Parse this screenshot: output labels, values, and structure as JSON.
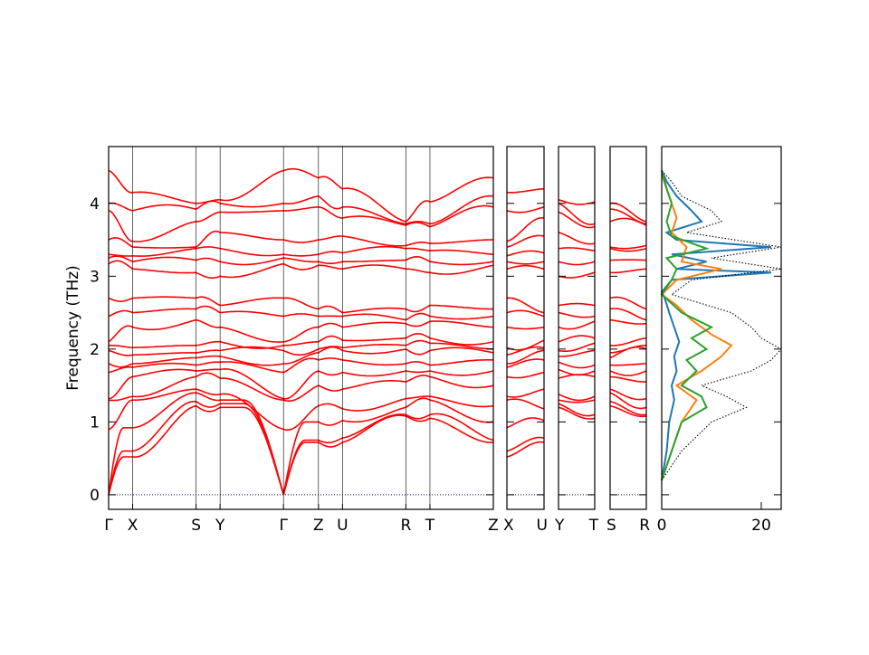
{
  "chart_data": {
    "type": "line",
    "ylabel": "Frequency (THz)",
    "ylim": [
      -0.2,
      4.78
    ],
    "yticks": [
      0,
      1,
      2,
      3,
      4
    ],
    "band_color": "#ff0000",
    "zero_line_color": "#00008b",
    "panels": [
      {
        "segments": [
          {
            "from": "Γ",
            "to": "X",
            "length": 0.55
          },
          {
            "from": "X",
            "to": "S",
            "length": 1.45
          },
          {
            "from": "S",
            "to": "Y",
            "length": 0.55
          },
          {
            "from": "Y",
            "to": "Γ",
            "length": 1.45
          },
          {
            "from": "Γ",
            "to": "Z",
            "length": 0.8
          },
          {
            "from": "Z",
            "to": "U",
            "length": 0.55
          },
          {
            "from": "U",
            "to": "R",
            "length": 1.45
          },
          {
            "from": "R",
            "to": "T",
            "length": 0.55
          },
          {
            "from": "T",
            "to": "Z",
            "length": 1.45
          }
        ],
        "tick_labels": [
          "Γ",
          "X",
          "S",
          "Y",
          "Γ",
          "Z",
          "U",
          "R",
          "T",
          "Z"
        ]
      },
      {
        "segments": [
          {
            "from": "X",
            "to": "U",
            "length": 1
          }
        ],
        "tick_labels": [
          "X",
          "U"
        ]
      },
      {
        "segments": [
          {
            "from": "Y",
            "to": "T",
            "length": 1
          }
        ],
        "tick_labels": [
          "Y",
          "T"
        ]
      },
      {
        "segments": [
          {
            "from": "S",
            "to": "R",
            "length": 1
          }
        ],
        "tick_labels": [
          "S",
          "R"
        ]
      }
    ],
    "bands_at_zone_points": {
      "Γ": [
        0,
        0,
        0,
        0.9,
        1.3,
        1.32,
        1.68,
        1.8,
        1.98,
        2.05,
        2.1,
        2.45,
        2.7,
        3.17,
        3.25,
        3.3,
        3.5,
        3.9,
        4.0,
        4.45
      ],
      "X": [
        0.52,
        0.6,
        0.92,
        1.3,
        1.35,
        1.62,
        1.75,
        1.8,
        1.92,
        2.02,
        2.3,
        2.5,
        2.7,
        3.1,
        3.2,
        3.28,
        3.4,
        3.48,
        3.9,
        4.15
      ],
      "S": [
        1.22,
        1.28,
        1.4,
        1.45,
        1.62,
        1.7,
        1.78,
        1.88,
        1.95,
        2.05,
        2.4,
        2.55,
        2.7,
        3.05,
        3.22,
        3.38,
        3.4,
        3.75,
        3.92,
        4.0
      ],
      "Y": [
        1.2,
        1.25,
        1.3,
        1.38,
        1.6,
        1.72,
        1.82,
        1.9,
        1.98,
        2.1,
        2.3,
        2.5,
        2.6,
        3.0,
        3.2,
        3.38,
        3.6,
        3.88,
        4.0,
        4.05
      ],
      "Z": [
        0.72,
        0.75,
        1.0,
        1.22,
        1.5,
        1.7,
        1.85,
        1.95,
        2.0,
        2.1,
        2.3,
        2.45,
        2.55,
        3.15,
        3.2,
        3.3,
        3.5,
        3.95,
        4.1,
        4.35
      ],
      "U": [
        0.72,
        0.78,
        1.02,
        1.18,
        1.45,
        1.68,
        1.85,
        1.98,
        2.02,
        2.12,
        2.3,
        2.45,
        2.5,
        3.1,
        3.2,
        3.32,
        3.55,
        3.8,
        3.95,
        4.2
      ],
      "R": [
        1.08,
        1.1,
        1.2,
        1.32,
        1.55,
        1.7,
        1.8,
        2.0,
        2.05,
        2.15,
        2.35,
        2.4,
        2.55,
        3.1,
        3.22,
        3.38,
        3.42,
        3.7,
        3.72,
        3.75
      ],
      "T": [
        1.05,
        1.1,
        1.3,
        1.35,
        1.62,
        1.7,
        1.78,
        1.98,
        2.08,
        2.15,
        2.38,
        2.45,
        2.6,
        3.05,
        3.2,
        3.35,
        3.45,
        3.68,
        3.72,
        4.02
      ]
    },
    "dos": {
      "xlim": [
        0,
        24
      ],
      "xticks": [
        0,
        20
      ],
      "series": [
        {
          "color": "#1f77b4",
          "frequency": [
            0.2,
            0.6,
            1.0,
            1.3,
            1.5,
            1.7,
            1.9,
            2.1,
            2.3,
            2.5,
            2.72,
            2.78,
            2.95,
            3.05,
            3.1,
            3.2,
            3.3,
            3.4,
            3.5,
            3.6,
            3.75,
            3.9,
            4.1,
            4.3,
            4.45
          ],
          "density": [
            0,
            1,
            1.5,
            2.5,
            2,
            3,
            2.5,
            3.5,
            2.5,
            1.5,
            0.5,
            0,
            2,
            22,
            3,
            9,
            2,
            22,
            3,
            1,
            8,
            6,
            3,
            1,
            0
          ]
        },
        {
          "color": "#ff7f0e",
          "frequency": [
            0.2,
            0.6,
            1.0,
            1.3,
            1.5,
            1.7,
            1.9,
            2.05,
            2.2,
            2.4,
            2.6,
            2.75,
            2.95,
            3.1,
            3.2,
            3.4,
            3.6,
            3.8,
            4.0,
            4.2,
            4.4
          ],
          "density": [
            0,
            2,
            4,
            7,
            3,
            8,
            12,
            14,
            10,
            6,
            3,
            0,
            3,
            12,
            4,
            5,
            2,
            3,
            2,
            1,
            0
          ]
        },
        {
          "color": "#2ca02c",
          "frequency": [
            0.2,
            0.6,
            1.0,
            1.2,
            1.35,
            1.5,
            1.7,
            1.85,
            2.0,
            2.15,
            2.3,
            2.5,
            2.75,
            2.95,
            3.1,
            3.25,
            3.38,
            3.55,
            3.75,
            4.0,
            4.2,
            4.45
          ],
          "density": [
            0,
            2,
            4,
            9,
            8,
            4,
            7,
            5,
            9,
            6,
            10,
            4,
            0,
            2,
            3,
            1,
            9,
            2,
            1,
            2,
            1,
            0
          ]
        },
        {
          "color": "#000000",
          "dotted": true,
          "frequency": [
            0.2,
            0.6,
            1.0,
            1.2,
            1.35,
            1.5,
            1.7,
            1.85,
            2.0,
            2.15,
            2.3,
            2.5,
            2.75,
            2.95,
            3.1,
            3.25,
            3.4,
            3.6,
            3.75,
            3.9,
            4.1,
            4.3,
            4.45
          ],
          "density": [
            0,
            4,
            10,
            17,
            13,
            8,
            18,
            22,
            24,
            20,
            18,
            14,
            2,
            6,
            24,
            10,
            24,
            5,
            12,
            10,
            4,
            2,
            0
          ]
        }
      ]
    }
  }
}
